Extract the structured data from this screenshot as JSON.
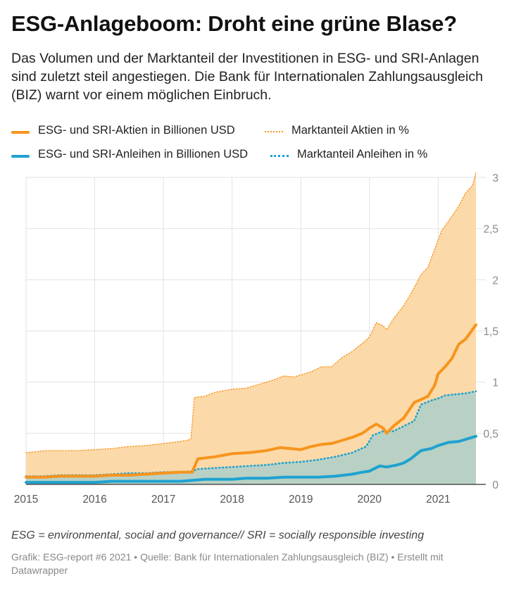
{
  "title": "ESG-Anlageboom: Droht eine grüne Blase?",
  "subtitle": "Das Volumen und der Marktanteil der Investitionen in ESG- und SRI-Anlagen sind zuletzt steil angestiegen. Die Bank für Internationalen Zahlungsausgleich (BIZ) warnt vor einem möglichen Einbruch.",
  "legend": {
    "stocks_volume": "ESG- und SRI-Aktien in Billionen USD",
    "stocks_share": "Marktanteil Aktien in %",
    "bonds_volume": "ESG- und SRI-Anleihen in Billionen USD",
    "bonds_share": "Marktanteil Anleihen in %"
  },
  "colors": {
    "orange": "#f7941d",
    "orange_fill": "#fcd9a8",
    "blue": "#1ea2d0",
    "blue_fill": "#b8d1c4",
    "grid": "#e2e2e2",
    "tick": "#8a8a8a"
  },
  "note": "ESG = environmental, social and governance// SRI = socially responsible investing",
  "footer": "Grafik: ESG-report #6 2021 • Quelle: Bank für Internationalen Zahlungsausgleich (BIZ) • Erstellt mit Datawrapper",
  "chart_data": {
    "type": "area",
    "xlabel": "",
    "ylabel": "",
    "xlim": [
      2015.0,
      2021.55
    ],
    "ylim": [
      0,
      3
    ],
    "x_ticks": [
      "2015",
      "2016",
      "2017",
      "2018",
      "2019",
      "2020",
      "2021"
    ],
    "y_ticks": [
      "0",
      "0,5",
      "1",
      "1,5",
      "2",
      "2,5",
      "3"
    ],
    "grid": true,
    "series": [
      {
        "name": "Marktanteil Aktien in %",
        "style": "area-dotted",
        "points": [
          [
            2015.0,
            0.31
          ],
          [
            2015.15,
            0.32
          ],
          [
            2015.3,
            0.33
          ],
          [
            2015.5,
            0.33
          ],
          [
            2015.75,
            0.33
          ],
          [
            2016.0,
            0.34
          ],
          [
            2016.25,
            0.35
          ],
          [
            2016.5,
            0.37
          ],
          [
            2016.75,
            0.38
          ],
          [
            2017.0,
            0.4
          ],
          [
            2017.25,
            0.42
          ],
          [
            2017.4,
            0.44
          ],
          [
            2017.45,
            0.85
          ],
          [
            2017.6,
            0.86
          ],
          [
            2017.75,
            0.9
          ],
          [
            2018.0,
            0.93
          ],
          [
            2018.2,
            0.94
          ],
          [
            2018.4,
            0.98
          ],
          [
            2018.6,
            1.02
          ],
          [
            2018.75,
            1.06
          ],
          [
            2018.9,
            1.05
          ],
          [
            2019.0,
            1.07
          ],
          [
            2019.15,
            1.1
          ],
          [
            2019.3,
            1.15
          ],
          [
            2019.45,
            1.15
          ],
          [
            2019.6,
            1.24
          ],
          [
            2019.75,
            1.3
          ],
          [
            2019.9,
            1.38
          ],
          [
            2020.0,
            1.44
          ],
          [
            2020.1,
            1.58
          ],
          [
            2020.2,
            1.55
          ],
          [
            2020.25,
            1.51
          ],
          [
            2020.35,
            1.62
          ],
          [
            2020.5,
            1.75
          ],
          [
            2020.6,
            1.86
          ],
          [
            2020.75,
            2.05
          ],
          [
            2020.85,
            2.12
          ],
          [
            2020.95,
            2.3
          ],
          [
            2021.05,
            2.48
          ],
          [
            2021.2,
            2.62
          ],
          [
            2021.3,
            2.72
          ],
          [
            2021.4,
            2.85
          ],
          [
            2021.5,
            2.92
          ],
          [
            2021.55,
            3.05
          ]
        ]
      },
      {
        "name": "ESG- und SRI-Aktien in Billionen USD",
        "style": "line",
        "points": [
          [
            2015.0,
            0.07
          ],
          [
            2015.25,
            0.07
          ],
          [
            2015.5,
            0.08
          ],
          [
            2015.75,
            0.08
          ],
          [
            2016.0,
            0.08
          ],
          [
            2016.25,
            0.09
          ],
          [
            2016.5,
            0.09
          ],
          [
            2016.75,
            0.1
          ],
          [
            2017.0,
            0.11
          ],
          [
            2017.25,
            0.12
          ],
          [
            2017.42,
            0.12
          ],
          [
            2017.5,
            0.25
          ],
          [
            2017.75,
            0.27
          ],
          [
            2018.0,
            0.3
          ],
          [
            2018.25,
            0.31
          ],
          [
            2018.5,
            0.33
          ],
          [
            2018.7,
            0.36
          ],
          [
            2018.85,
            0.35
          ],
          [
            2019.0,
            0.34
          ],
          [
            2019.15,
            0.37
          ],
          [
            2019.3,
            0.39
          ],
          [
            2019.45,
            0.4
          ],
          [
            2019.6,
            0.43
          ],
          [
            2019.75,
            0.46
          ],
          [
            2019.9,
            0.5
          ],
          [
            2020.0,
            0.55
          ],
          [
            2020.1,
            0.59
          ],
          [
            2020.2,
            0.55
          ],
          [
            2020.25,
            0.5
          ],
          [
            2020.35,
            0.57
          ],
          [
            2020.5,
            0.65
          ],
          [
            2020.65,
            0.8
          ],
          [
            2020.75,
            0.83
          ],
          [
            2020.85,
            0.86
          ],
          [
            2020.95,
            0.97
          ],
          [
            2021.0,
            1.08
          ],
          [
            2021.1,
            1.15
          ],
          [
            2021.2,
            1.23
          ],
          [
            2021.3,
            1.37
          ],
          [
            2021.4,
            1.42
          ],
          [
            2021.55,
            1.56
          ]
        ]
      },
      {
        "name": "Marktanteil Anleihen in %",
        "style": "area-dotted",
        "points": [
          [
            2015.0,
            0.08
          ],
          [
            2015.25,
            0.08
          ],
          [
            2015.5,
            0.09
          ],
          [
            2015.75,
            0.09
          ],
          [
            2016.0,
            0.09
          ],
          [
            2016.25,
            0.1
          ],
          [
            2016.5,
            0.11
          ],
          [
            2016.75,
            0.11
          ],
          [
            2017.0,
            0.12
          ],
          [
            2017.25,
            0.12
          ],
          [
            2017.42,
            0.13
          ],
          [
            2017.5,
            0.15
          ],
          [
            2017.75,
            0.16
          ],
          [
            2018.0,
            0.17
          ],
          [
            2018.25,
            0.18
          ],
          [
            2018.5,
            0.19
          ],
          [
            2018.75,
            0.21
          ],
          [
            2019.0,
            0.22
          ],
          [
            2019.25,
            0.24
          ],
          [
            2019.5,
            0.27
          ],
          [
            2019.75,
            0.31
          ],
          [
            2019.95,
            0.37
          ],
          [
            2020.05,
            0.48
          ],
          [
            2020.2,
            0.52
          ],
          [
            2020.35,
            0.52
          ],
          [
            2020.5,
            0.57
          ],
          [
            2020.65,
            0.62
          ],
          [
            2020.75,
            0.78
          ],
          [
            2020.9,
            0.82
          ],
          [
            2021.0,
            0.84
          ],
          [
            2021.1,
            0.87
          ],
          [
            2021.25,
            0.88
          ],
          [
            2021.4,
            0.89
          ],
          [
            2021.55,
            0.91
          ]
        ]
      },
      {
        "name": "ESG- und SRI-Anleihen in Billionen USD",
        "style": "line",
        "points": [
          [
            2015.0,
            0.02
          ],
          [
            2015.25,
            0.02
          ],
          [
            2015.5,
            0.02
          ],
          [
            2015.75,
            0.02
          ],
          [
            2016.0,
            0.02
          ],
          [
            2016.25,
            0.03
          ],
          [
            2016.5,
            0.03
          ],
          [
            2016.75,
            0.03
          ],
          [
            2017.0,
            0.03
          ],
          [
            2017.25,
            0.03
          ],
          [
            2017.42,
            0.04
          ],
          [
            2017.6,
            0.05
          ],
          [
            2017.75,
            0.05
          ],
          [
            2018.0,
            0.05
          ],
          [
            2018.2,
            0.06
          ],
          [
            2018.5,
            0.06
          ],
          [
            2018.75,
            0.07
          ],
          [
            2019.0,
            0.07
          ],
          [
            2019.25,
            0.07
          ],
          [
            2019.5,
            0.08
          ],
          [
            2019.75,
            0.1
          ],
          [
            2019.9,
            0.12
          ],
          [
            2020.0,
            0.13
          ],
          [
            2020.15,
            0.18
          ],
          [
            2020.25,
            0.17
          ],
          [
            2020.4,
            0.19
          ],
          [
            2020.5,
            0.21
          ],
          [
            2020.6,
            0.25
          ],
          [
            2020.75,
            0.33
          ],
          [
            2020.9,
            0.35
          ],
          [
            2021.0,
            0.38
          ],
          [
            2021.15,
            0.41
          ],
          [
            2021.3,
            0.42
          ],
          [
            2021.45,
            0.45
          ],
          [
            2021.55,
            0.47
          ]
        ]
      }
    ]
  }
}
